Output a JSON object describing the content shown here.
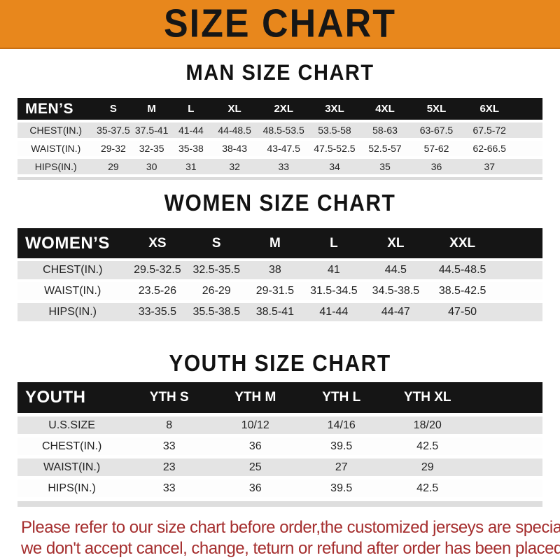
{
  "banner": {
    "title": "SIZE CHART"
  },
  "chart_data": [
    {
      "type": "table",
      "title": "MAN SIZE CHART",
      "label": "MEN’S",
      "columns": [
        "S",
        "M",
        "L",
        "XL",
        "2XL",
        "3XL",
        "4XL",
        "5XL",
        "6XL"
      ],
      "rows": [
        {
          "label": "CHEST(IN.)",
          "values": [
            "35-37.5",
            "37.5-41",
            "41-44",
            "44-48.5",
            "48.5-53.5",
            "53.5-58",
            "58-63",
            "63-67.5",
            "67.5-72"
          ]
        },
        {
          "label": "WAIST(IN.)",
          "values": [
            "29-32",
            "32-35",
            "35-38",
            "38-43",
            "43-47.5",
            "47.5-52.5",
            "52.5-57",
            "57-62",
            "62-66.5"
          ]
        },
        {
          "label": "HIPS(IN.)",
          "values": [
            "29",
            "30",
            "31",
            "32",
            "33",
            "34",
            "35",
            "36",
            "37"
          ]
        }
      ]
    },
    {
      "type": "table",
      "title": "WOMEN SIZE CHART",
      "label": "WOMEN’S",
      "columns": [
        "XS",
        "S",
        "M",
        "L",
        "XL",
        "XXL"
      ],
      "rows": [
        {
          "label": "CHEST(IN.)",
          "values": [
            "29.5-32.5",
            "32.5-35.5",
            "38",
            "41",
            "44.5",
            "44.5-48.5"
          ]
        },
        {
          "label": "WAIST(IN.)",
          "values": [
            "23.5-26",
            "26-29",
            "29-31.5",
            "31.5-34.5",
            "34.5-38.5",
            "38.5-42.5"
          ]
        },
        {
          "label": "HIPS(IN.)",
          "values": [
            "33-35.5",
            "35.5-38.5",
            "38.5-41",
            "41-44",
            "44-47",
            "47-50"
          ]
        }
      ]
    },
    {
      "type": "table",
      "title": "YOUTH SIZE CHART",
      "label": "YOUTH",
      "columns": [
        "YTH S",
        "YTH M",
        "YTH L",
        "YTH XL"
      ],
      "rows": [
        {
          "label": "U.S.SIZE",
          "values": [
            "8",
            "10/12",
            "14/16",
            "18/20"
          ]
        },
        {
          "label": "CHEST(IN.)",
          "values": [
            "33",
            "36",
            "39.5",
            "42.5"
          ]
        },
        {
          "label": "WAIST(IN.)",
          "values": [
            "23",
            "25",
            "27",
            "29"
          ]
        },
        {
          "label": "HIPS(IN.)",
          "values": [
            "33",
            "36",
            "39.5",
            "42.5"
          ]
        }
      ]
    }
  ],
  "footer": {
    "line1": "Please refer to our size chart before order,the customized jerseys are special products,",
    "line2": "we don't accept cancel, change, teturn or refund after order has been placed!"
  },
  "colors": {
    "banner_orange": "#E8871C",
    "header_bar_black": "#151515",
    "shaded_row_gray": "#E4E4E4",
    "note_red": "#A52E2E"
  }
}
